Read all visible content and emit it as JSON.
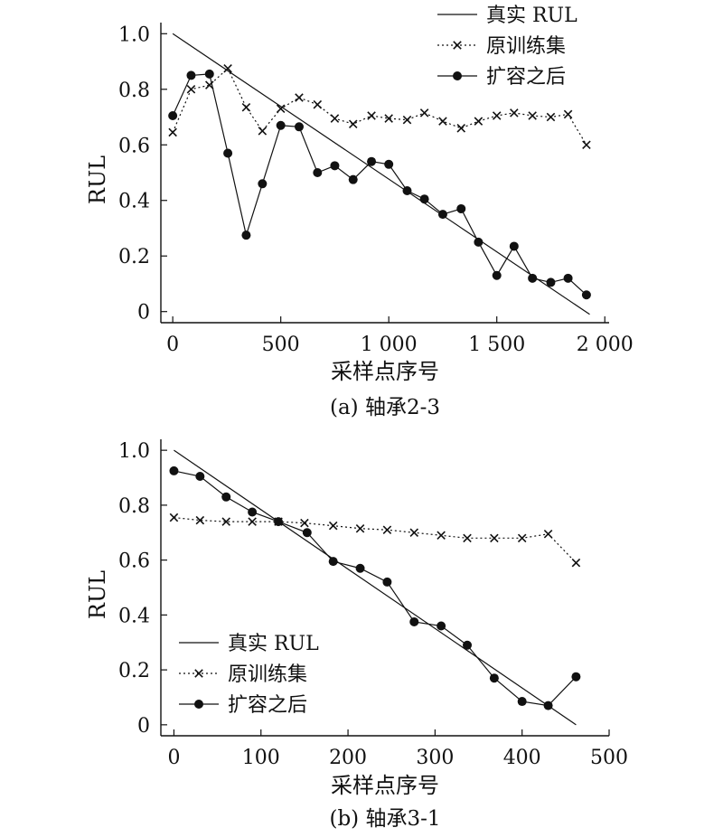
{
  "chart_data": [
    {
      "type": "line",
      "caption": "(a) 轴承2-3",
      "xlabel": "采样点序号",
      "ylabel": "RUL",
      "xlim": [
        -55,
        2020
      ],
      "ylim": [
        -0.04,
        1.04
      ],
      "xticks": [
        0,
        500,
        1000,
        1500,
        2000
      ],
      "xtick_labels": [
        "0",
        "500",
        "1 000",
        "1 500",
        "2 000"
      ],
      "yticks": [
        0,
        0.2,
        0.4,
        0.6,
        0.8,
        1.0
      ],
      "ytick_labels": [
        "0",
        "0.2",
        "0.4",
        "0.6",
        "0.8",
        "1.0"
      ],
      "grid": false,
      "legend_position": "top-right",
      "series": [
        {
          "name": "真实 RUL",
          "style": "solid",
          "marker": "none",
          "x": [
            0,
            1930
          ],
          "y": [
            1.0,
            -0.01
          ]
        },
        {
          "name": "原训练集",
          "style": "dotted",
          "marker": "x",
          "x": [
            0,
            85,
            170,
            255,
            340,
            415,
            500,
            585,
            670,
            750,
            835,
            920,
            1000,
            1085,
            1165,
            1250,
            1335,
            1415,
            1500,
            1580,
            1665,
            1750,
            1830,
            1915
          ],
          "y": [
            0.645,
            0.8,
            0.815,
            0.875,
            0.735,
            0.65,
            0.73,
            0.77,
            0.745,
            0.695,
            0.675,
            0.705,
            0.695,
            0.69,
            0.715,
            0.685,
            0.66,
            0.685,
            0.705,
            0.715,
            0.705,
            0.7,
            0.71,
            0.6
          ]
        },
        {
          "name": "扩容之后",
          "style": "solid",
          "marker": "circle",
          "x": [
            0,
            85,
            170,
            255,
            340,
            415,
            500,
            585,
            670,
            750,
            835,
            920,
            1000,
            1085,
            1165,
            1250,
            1335,
            1415,
            1500,
            1580,
            1665,
            1750,
            1830,
            1915
          ],
          "y": [
            0.705,
            0.85,
            0.855,
            0.57,
            0.275,
            0.46,
            0.67,
            0.665,
            0.5,
            0.525,
            0.475,
            0.54,
            0.53,
            0.435,
            0.405,
            0.35,
            0.37,
            0.25,
            0.13,
            0.235,
            0.12,
            0.105,
            0.12,
            0.06
          ]
        }
      ]
    },
    {
      "type": "line",
      "caption": "(b) 轴承3-1",
      "xlabel": "采样点序号",
      "ylabel": "RUL",
      "xlim": [
        -15,
        500
      ],
      "ylim": [
        -0.04,
        1.04
      ],
      "xticks": [
        0,
        100,
        200,
        300,
        400,
        500
      ],
      "xtick_labels": [
        "0",
        "100",
        "200",
        "300",
        "400",
        "500"
      ],
      "yticks": [
        0,
        0.2,
        0.4,
        0.6,
        0.8,
        1.0
      ],
      "ytick_labels": [
        "0",
        "0.2",
        "0.4",
        "0.6",
        "0.8",
        "1.0"
      ],
      "grid": false,
      "legend_position": "bottom-left",
      "series": [
        {
          "name": "真实 RUL",
          "style": "solid",
          "marker": "none",
          "x": [
            0,
            462
          ],
          "y": [
            1.0,
            0.0
          ]
        },
        {
          "name": "原训练集",
          "style": "dotted",
          "marker": "x",
          "x": [
            0,
            30,
            60,
            90,
            120,
            150,
            183,
            214,
            245,
            276,
            307,
            337,
            368,
            400,
            430,
            462
          ],
          "y": [
            0.755,
            0.745,
            0.74,
            0.74,
            0.74,
            0.735,
            0.725,
            0.715,
            0.71,
            0.7,
            0.69,
            0.68,
            0.68,
            0.68,
            0.695,
            0.59
          ]
        },
        {
          "name": "扩容之后",
          "style": "solid",
          "marker": "circle",
          "x": [
            0,
            30,
            60,
            90,
            120,
            153,
            183,
            214,
            245,
            276,
            307,
            337,
            368,
            400,
            430,
            462
          ],
          "y": [
            0.925,
            0.905,
            0.83,
            0.775,
            0.74,
            0.7,
            0.595,
            0.57,
            0.52,
            0.375,
            0.36,
            0.29,
            0.17,
            0.085,
            0.07,
            0.175
          ]
        }
      ]
    }
  ]
}
